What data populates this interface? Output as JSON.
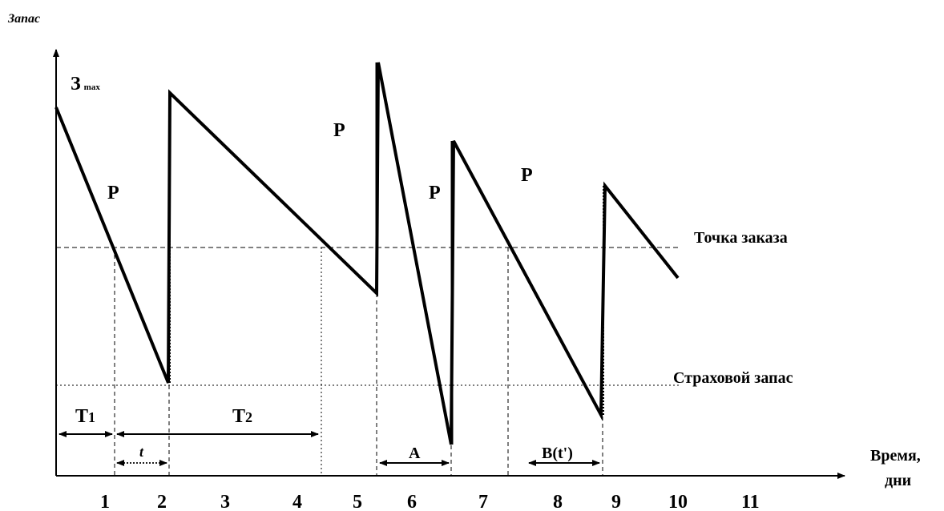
{
  "axes": {
    "y_label": "Запас",
    "x_label_line1": "Время,",
    "x_label_line2": "дни",
    "ticks": [
      "1",
      "2",
      "3",
      "4",
      "5",
      "6",
      "7",
      "8",
      "9",
      "10",
      "11"
    ]
  },
  "labels": {
    "z_max_main": "З",
    "z_max_sub": "max",
    "p": "P",
    "reorder_point": "Точка заказа",
    "safety_stock": "Страховой запас",
    "t1_main": "T",
    "t1_sub": "1",
    "t2_main": "T",
    "t2_sub": "2",
    "t_small": "t",
    "a": "A",
    "b": "B(t')"
  }
}
